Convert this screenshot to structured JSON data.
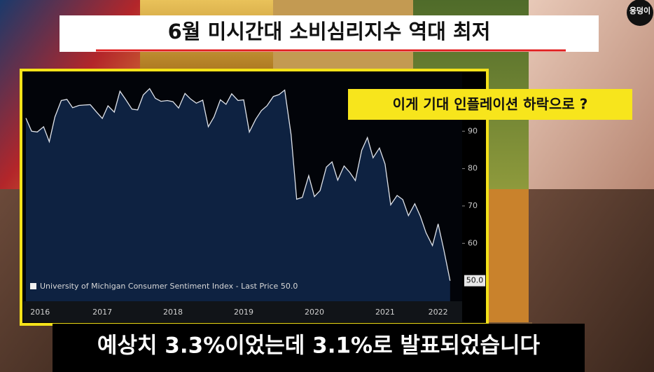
{
  "title": "6월 미시간대 소비심리지수 역대 최저",
  "annotation": "이게 기대 인플레이션 하락으로 ?",
  "subtitle": "예상치 3.3%이었는데 3.1%로 발표되었습니다",
  "logo": "웅덩이",
  "chart_data": {
    "type": "area",
    "legend": "University of Michigan Consumer Sentiment Index - Last Price 50.0",
    "last_price_label": "50.0",
    "color": "#dfe3ea",
    "fill": "#0e2241",
    "x": [
      2016.42,
      2016.5,
      2016.58,
      2016.67,
      2016.75,
      2016.83,
      2016.92,
      2017,
      2017.08,
      2017.17,
      2017.25,
      2017.33,
      2017.42,
      2017.5,
      2017.58,
      2017.67,
      2017.75,
      2017.83,
      2017.92,
      2018,
      2018.08,
      2018.17,
      2018.25,
      2018.33,
      2018.42,
      2018.5,
      2018.58,
      2018.67,
      2018.75,
      2018.83,
      2018.92,
      2019,
      2019.08,
      2019.17,
      2019.25,
      2019.33,
      2019.42,
      2019.5,
      2019.58,
      2019.67,
      2019.75,
      2019.83,
      2019.92,
      2020,
      2020.08,
      2020.17,
      2020.25,
      2020.33,
      2020.42,
      2020.5,
      2020.58,
      2020.67,
      2020.75,
      2020.83,
      2020.92,
      2021,
      2021.08,
      2021.17,
      2021.25,
      2021.33,
      2021.42,
      2021.5,
      2021.58,
      2021.67,
      2021.75,
      2021.83,
      2021.92,
      2022,
      2022.08,
      2022.17,
      2022.25,
      2022.33,
      2022.42
    ],
    "values": [
      93.5,
      90.0,
      89.8,
      91.2,
      87.2,
      93.8,
      98.2,
      98.5,
      96.3,
      96.9,
      97.0,
      97.1,
      95.1,
      93.4,
      96.8,
      95.1,
      100.7,
      98.5,
      95.9,
      95.7,
      99.7,
      101.4,
      98.8,
      98.0,
      98.2,
      97.9,
      96.2,
      100.1,
      98.6,
      97.5,
      98.3,
      91.2,
      93.8,
      98.4,
      97.2,
      100.0,
      98.2,
      98.4,
      89.8,
      93.2,
      95.5,
      96.8,
      99.3,
      99.8,
      101.0,
      89.1,
      71.8,
      72.3,
      78.1,
      72.5,
      74.1,
      80.4,
      81.8,
      76.9,
      80.7,
      79.0,
      76.8,
      84.9,
      88.3,
      82.9,
      85.5,
      81.2,
      70.3,
      72.8,
      71.7,
      67.4,
      70.6,
      67.2,
      62.8,
      59.4,
      65.2,
      58.4,
      50.0
    ],
    "xlim": [
      2016.38,
      2022.59
    ],
    "ylim": [
      44.5,
      105.8
    ],
    "xticks": [
      {
        "value": 2016.62,
        "label": "2016"
      },
      {
        "value": 2017.5,
        "label": "2017"
      },
      {
        "value": 2018.5,
        "label": "2018"
      },
      {
        "value": 2019.5,
        "label": "2019"
      },
      {
        "value": 2020.5,
        "label": "2020"
      },
      {
        "value": 2021.5,
        "label": "2021"
      },
      {
        "value": 2022.25,
        "label": "2022"
      }
    ],
    "yticks": [
      60,
      70,
      80,
      90
    ]
  }
}
